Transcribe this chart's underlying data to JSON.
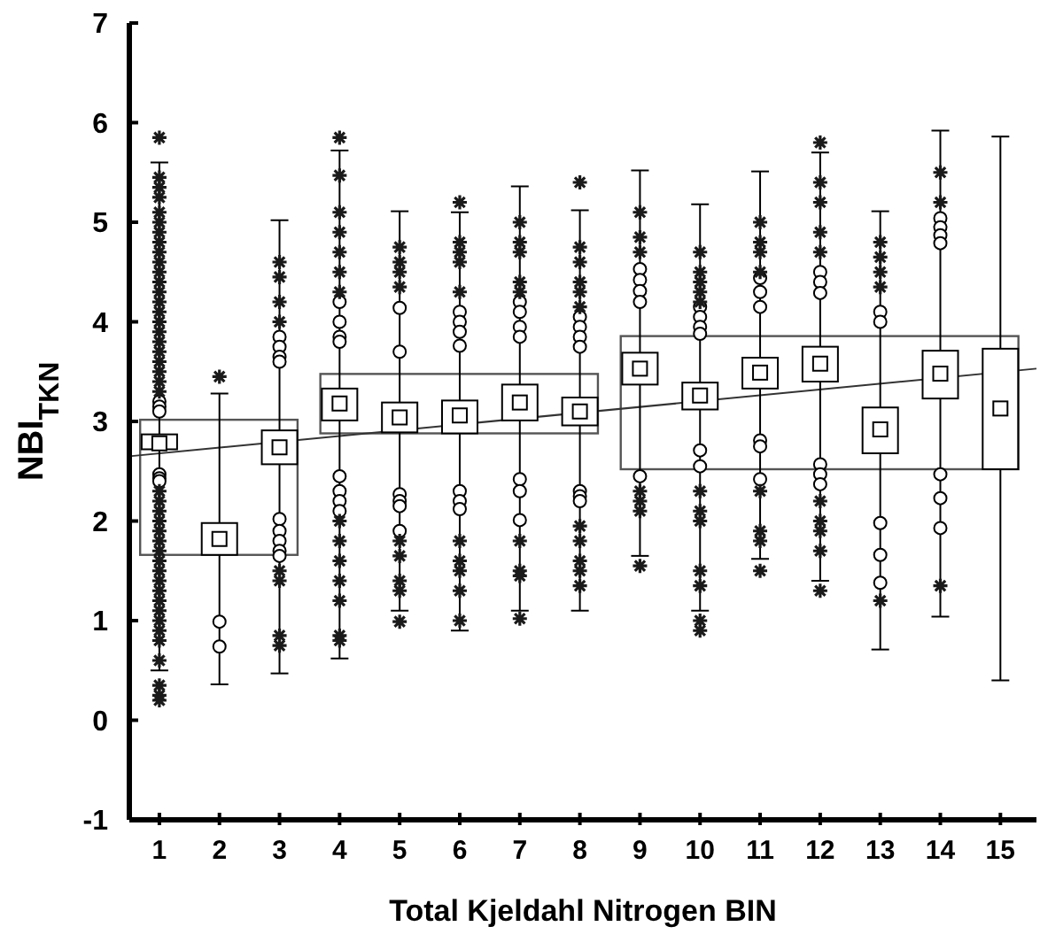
{
  "chart_data": {
    "type": "box",
    "xlabel": "Total Kjeldahl Nitrogen BIN",
    "ylabel": "NBI$_{TKN}$",
    "x": [
      1,
      2,
      3,
      4,
      5,
      6,
      7,
      8,
      9,
      10,
      11,
      12,
      13,
      14,
      15
    ],
    "xlim": [
      0.5,
      15.6
    ],
    "xticks": [
      1,
      2,
      3,
      4,
      5,
      6,
      7,
      8,
      9,
      10,
      11,
      12,
      13,
      14,
      15
    ],
    "ylim": [
      -1,
      7
    ],
    "yticks": [
      -1,
      0,
      1,
      2,
      3,
      4,
      5,
      6,
      7
    ],
    "marker": "circle",
    "boxes": [
      {
        "low": 0.5,
        "q1": 2.72,
        "median": 2.78,
        "q3": 2.87,
        "high": 5.6,
        "outliers": [
          3.2,
          3.15,
          3.1,
          2.47,
          2.43,
          2.4
        ]
      },
      {
        "low": 0.36,
        "q1": 1.66,
        "median": 1.82,
        "q3": 1.98,
        "high": 3.28,
        "outliers": [
          0.99,
          0.74
        ]
      },
      {
        "low": 0.47,
        "q1": 2.57,
        "median": 2.74,
        "q3": 2.91,
        "high": 5.02,
        "outliers": [
          3.85,
          3.75,
          3.65,
          3.6,
          2.02,
          1.9,
          1.8,
          1.7,
          1.65
        ]
      },
      {
        "low": 0.62,
        "q1": 3.01,
        "median": 3.18,
        "q3": 3.33,
        "high": 5.72,
        "outliers": [
          4.2,
          4.0,
          3.85,
          3.8,
          2.45,
          2.3,
          2.2,
          2.1
        ]
      },
      {
        "low": 1.1,
        "q1": 2.89,
        "median": 3.04,
        "q3": 3.19,
        "high": 5.11,
        "outliers": [
          4.14,
          3.7,
          2.27,
          2.2,
          2.15,
          1.9
        ]
      },
      {
        "low": 0.9,
        "q1": 2.88,
        "median": 3.06,
        "q3": 3.21,
        "high": 5.1,
        "outliers": [
          4.1,
          4.0,
          3.9,
          3.76,
          2.3,
          2.2,
          2.12
        ]
      },
      {
        "low": 1.1,
        "q1": 3.01,
        "median": 3.19,
        "q3": 3.37,
        "high": 5.36,
        "outliers": [
          4.2,
          4.1,
          3.95,
          3.85,
          2.42,
          2.3,
          2.01
        ]
      },
      {
        "low": 1.1,
        "q1": 2.96,
        "median": 3.1,
        "q3": 3.24,
        "high": 5.12,
        "outliers": [
          4.05,
          3.95,
          3.85,
          3.75,
          2.3,
          2.25,
          2.2
        ]
      },
      {
        "low": 1.65,
        "q1": 3.37,
        "median": 3.53,
        "q3": 3.69,
        "high": 5.52,
        "outliers": [
          4.53,
          4.42,
          4.31,
          4.2,
          2.45
        ]
      },
      {
        "low": 1.1,
        "q1": 3.12,
        "median": 3.26,
        "q3": 3.39,
        "high": 5.18,
        "outliers": [
          4.15,
          4.05,
          3.95,
          3.88,
          2.71,
          2.55
        ]
      },
      {
        "low": 1.62,
        "q1": 3.33,
        "median": 3.49,
        "q3": 3.64,
        "high": 5.51,
        "outliers": [
          4.44,
          4.3,
          4.15,
          2.81,
          2.75,
          2.42
        ]
      },
      {
        "low": 1.4,
        "q1": 3.4,
        "median": 3.58,
        "q3": 3.75,
        "high": 5.7,
        "outliers": [
          4.5,
          4.4,
          4.29,
          2.57,
          2.47,
          2.37
        ]
      },
      {
        "low": 0.71,
        "q1": 2.68,
        "median": 2.92,
        "q3": 3.14,
        "high": 5.11,
        "outliers": [
          4.1,
          4.0,
          1.98,
          1.66,
          1.38
        ]
      },
      {
        "low": 1.04,
        "q1": 3.23,
        "median": 3.48,
        "q3": 3.71,
        "high": 5.92,
        "outliers": [
          5.04,
          4.95,
          4.87,
          4.79,
          2.47,
          2.23,
          1.93
        ]
      },
      {
        "low": 0.4,
        "q1": 2.52,
        "median": 3.13,
        "q3": 3.73,
        "high": 5.86
      }
    ],
    "series": [
      {
        "type": "scatter",
        "marker": "cross",
        "color": "#1a1a1a",
        "x": [
          1,
          1,
          1,
          1,
          1,
          1,
          1,
          1,
          1,
          1,
          1,
          1,
          1,
          1,
          1,
          1,
          1,
          1,
          1,
          1,
          1,
          1,
          1,
          1,
          1,
          1,
          1,
          1,
          1,
          1,
          1,
          1,
          1,
          1,
          1,
          1,
          1,
          1,
          1,
          1,
          1,
          1,
          1,
          2,
          3,
          3,
          3,
          3,
          3,
          3,
          3,
          3,
          4,
          4,
          4,
          4,
          4,
          4,
          4,
          4,
          4,
          4,
          4,
          4,
          4,
          4,
          5,
          5,
          5,
          5,
          5,
          5,
          5,
          5,
          5,
          6,
          6,
          6,
          6,
          6,
          6,
          6,
          6,
          6,
          6,
          7,
          7,
          7,
          7,
          7,
          7,
          7,
          7,
          7,
          8,
          8,
          8,
          8,
          8,
          8,
          8,
          8,
          8,
          8,
          8,
          9,
          9,
          9,
          9,
          9,
          9,
          9,
          10,
          10,
          10,
          10,
          10,
          10,
          10,
          10,
          10,
          10,
          10,
          10,
          11,
          11,
          11,
          11,
          11,
          11,
          11,
          11,
          12,
          12,
          12,
          12,
          12,
          12,
          12,
          12,
          12,
          12,
          13,
          13,
          13,
          13,
          13,
          14,
          14,
          14
        ],
        "values": [
          5.85,
          5.45,
          5.35,
          5.25,
          5.1,
          5.0,
          4.9,
          4.8,
          4.7,
          4.6,
          4.5,
          4.4,
          4.3,
          4.2,
          4.1,
          4.0,
          3.9,
          3.8,
          3.7,
          3.6,
          3.5,
          3.4,
          3.3,
          2.3,
          2.2,
          2.1,
          2.0,
          1.9,
          1.8,
          1.7,
          1.6,
          1.5,
          1.4,
          1.3,
          1.2,
          1.1,
          1.0,
          0.9,
          0.8,
          0.6,
          0.35,
          0.25,
          0.2,
          3.45,
          4.6,
          4.45,
          4.2,
          4.0,
          1.5,
          1.4,
          0.85,
          0.75,
          5.85,
          5.47,
          5.1,
          4.9,
          4.7,
          4.5,
          4.3,
          2.0,
          1.8,
          1.6,
          1.4,
          1.2,
          0.85,
          0.8,
          4.75,
          4.6,
          4.5,
          4.35,
          1.8,
          1.65,
          1.4,
          1.3,
          0.99,
          5.2,
          4.8,
          4.7,
          4.6,
          4.3,
          1.8,
          1.6,
          1.5,
          1.3,
          1.0,
          5.0,
          4.8,
          4.7,
          4.4,
          4.3,
          1.8,
          1.5,
          1.45,
          1.02,
          5.4,
          4.75,
          4.6,
          4.4,
          4.3,
          4.15,
          1.95,
          1.8,
          1.6,
          1.5,
          1.35,
          5.1,
          4.85,
          4.7,
          2.3,
          2.2,
          2.1,
          1.55,
          4.7,
          4.5,
          4.4,
          4.3,
          4.2,
          2.3,
          2.1,
          2.0,
          1.5,
          1.35,
          1.0,
          0.9,
          5.0,
          4.8,
          4.7,
          4.5,
          2.3,
          1.9,
          1.8,
          1.5,
          5.8,
          5.4,
          5.2,
          4.9,
          4.7,
          2.2,
          2.0,
          1.9,
          1.7,
          1.3,
          4.8,
          4.65,
          4.5,
          4.35,
          1.2,
          5.5,
          5.2,
          1.35
        ]
      },
      {
        "type": "line",
        "color": "#333333",
        "marker": "none",
        "x": [
          0.5,
          15.6
        ],
        "values": [
          2.65,
          3.53
        ]
      }
    ]
  }
}
